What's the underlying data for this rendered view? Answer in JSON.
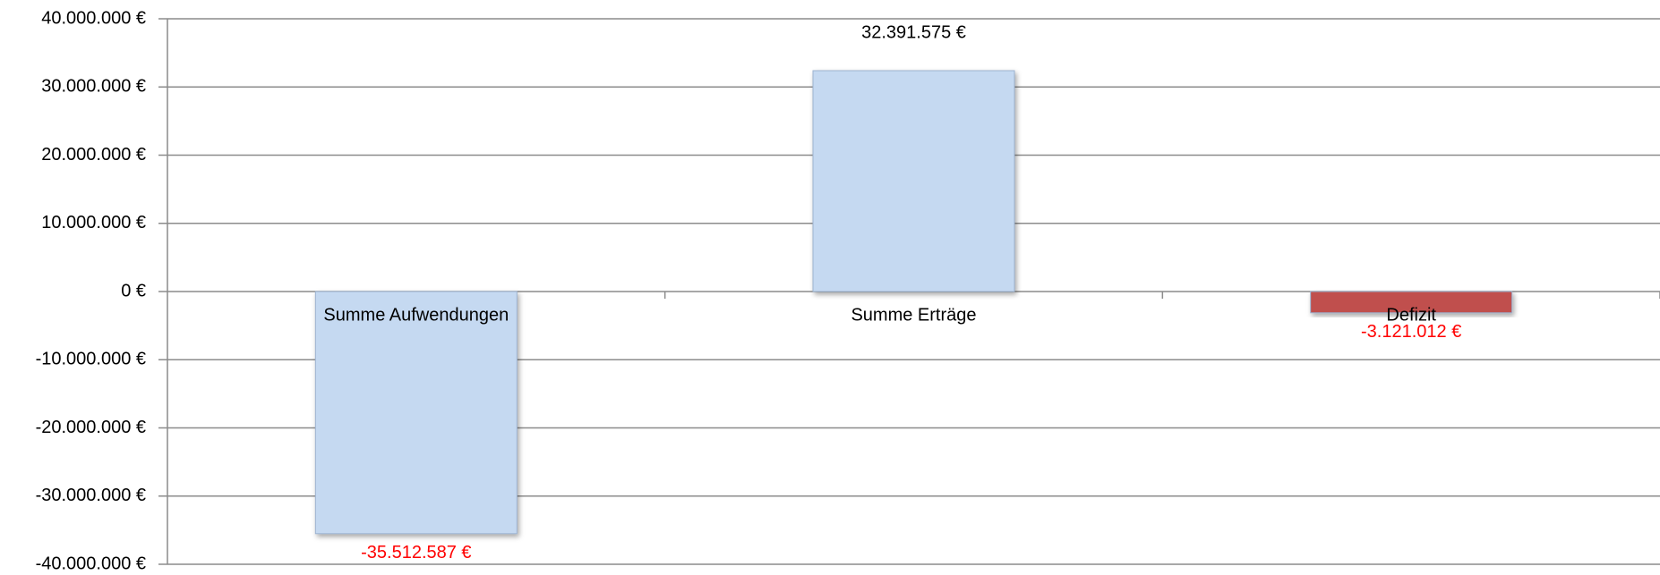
{
  "chart_data": {
    "type": "bar",
    "categories": [
      "Summe Aufwendungen",
      "Summe Erträge",
      "Defizit"
    ],
    "values": [
      -35512587,
      32391575,
      -3121012
    ],
    "value_labels": [
      "-35.512.587 €",
      "32.391.575 €",
      "-3.121.012 €"
    ],
    "colors": [
      "#c5d9f1",
      "#c5d9f1",
      "#c0504d"
    ],
    "label_color": "#000000",
    "negative_label_color": "#ff0000",
    "ylim": [
      -40000000,
      40000000
    ],
    "yticks": [
      {
        "value": -40000000,
        "label": "-40.000.000 €"
      },
      {
        "value": -30000000,
        "label": "-30.000.000 €"
      },
      {
        "value": -20000000,
        "label": "-20.000.000 €"
      },
      {
        "value": -10000000,
        "label": "-10.000.000 €"
      },
      {
        "value": 0,
        "label": "0 €"
      },
      {
        "value": 10000000,
        "label": "10.000.000 €"
      },
      {
        "value": 20000000,
        "label": "20.000.000 €"
      },
      {
        "value": 30000000,
        "label": "30.000.000 €"
      },
      {
        "value": 40000000,
        "label": "40.000.000 €"
      }
    ],
    "grid": true
  }
}
